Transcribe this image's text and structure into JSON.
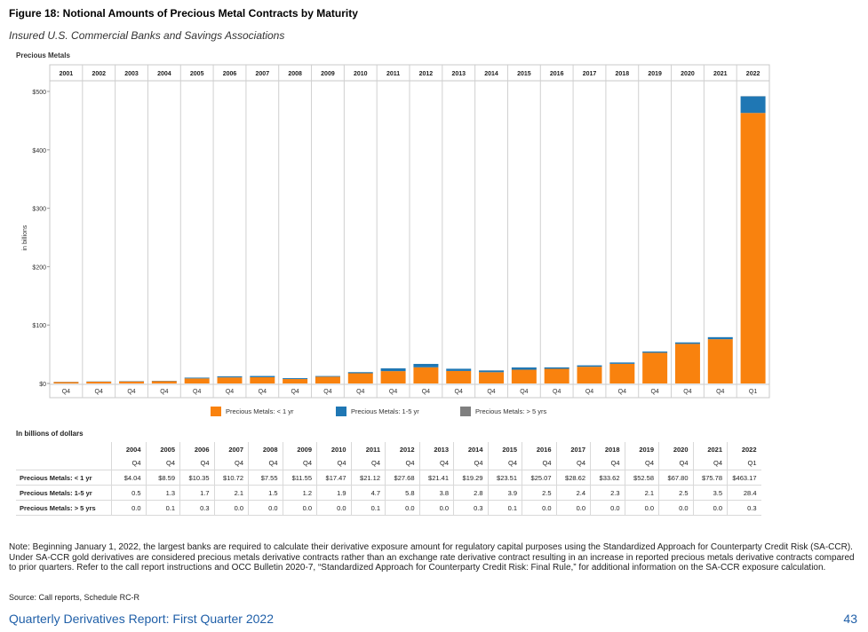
{
  "figure": {
    "title": "Figure 18: Notional Amounts of Precious Metal Contracts by Maturity",
    "subtitle": "Insured U.S. Commercial Banks and Savings Associations",
    "panel_title": "Precious Metals"
  },
  "colors": {
    "lt1": "#f9820e",
    "y1to5": "#1f77b4",
    "gt5": "#7f7f7f"
  },
  "chart_data": {
    "type": "bar",
    "title": "Precious Metals",
    "ylabel": "in billions",
    "xlabel": "",
    "ylim": [
      0,
      500
    ],
    "yticks": [
      "$0",
      "$100",
      "$200",
      "$300",
      "$400",
      "$500"
    ],
    "yticks_values": [
      0,
      100,
      200,
      300,
      400,
      500
    ],
    "categories": [
      "2001",
      "2002",
      "2003",
      "2004",
      "2005",
      "2006",
      "2007",
      "2008",
      "2009",
      "2010",
      "2011",
      "2012",
      "2013",
      "2014",
      "2015",
      "2016",
      "2017",
      "2018",
      "2019",
      "2020",
      "2021",
      "2022"
    ],
    "quarters": [
      "Q4",
      "Q4",
      "Q4",
      "Q4",
      "Q4",
      "Q4",
      "Q4",
      "Q4",
      "Q4",
      "Q4",
      "Q4",
      "Q4",
      "Q4",
      "Q4",
      "Q4",
      "Q4",
      "Q4",
      "Q4",
      "Q4",
      "Q4",
      "Q4",
      "Q1"
    ],
    "stacked": true,
    "series": [
      {
        "name": "Precious Metals: < 1 yr",
        "values": [
          2.5,
          3.0,
          3.5,
          4.04,
          8.59,
          10.35,
          10.72,
          7.55,
          11.55,
          17.47,
          21.12,
          27.68,
          21.41,
          19.29,
          23.51,
          25.07,
          28.62,
          33.62,
          52.58,
          67.8,
          75.78,
          463.17
        ]
      },
      {
        "name": "Precious Metals: 1-5 yr",
        "values": [
          0.3,
          0.4,
          0.5,
          0.5,
          1.3,
          1.7,
          2.1,
          1.5,
          1.2,
          1.9,
          4.7,
          5.8,
          3.8,
          2.8,
          3.9,
          2.5,
          2.4,
          2.3,
          2.1,
          2.5,
          3.5,
          28.4
        ]
      },
      {
        "name": "Precious Metals: > 5 yrs",
        "values": [
          0.0,
          0.0,
          0.0,
          0.0,
          0.1,
          0.3,
          0.0,
          0.0,
          0.0,
          0.0,
          0.1,
          0.0,
          0.0,
          0.3,
          0.1,
          0.0,
          0.0,
          0.0,
          0.0,
          0.0,
          0.0,
          0.3
        ]
      }
    ],
    "legend": [
      "Precious Metals: < 1 yr",
      "Precious Metals: 1-5 yr",
      "Precious Metals: > 5 yrs"
    ],
    "legend_position": "bottom"
  },
  "table": {
    "title": "In billions of dollars",
    "years": [
      "2004",
      "2005",
      "2006",
      "2007",
      "2008",
      "2009",
      "2010",
      "2011",
      "2012",
      "2013",
      "2014",
      "2015",
      "2016",
      "2017",
      "2018",
      "2019",
      "2020",
      "2021",
      "2022"
    ],
    "quarters": [
      "Q4",
      "Q4",
      "Q4",
      "Q4",
      "Q4",
      "Q4",
      "Q4",
      "Q4",
      "Q4",
      "Q4",
      "Q4",
      "Q4",
      "Q4",
      "Q4",
      "Q4",
      "Q4",
      "Q4",
      "Q4",
      "Q1"
    ],
    "rows": [
      {
        "label": "Precious Metals: < 1 yr",
        "values": [
          "$4.04",
          "$8.59",
          "$10.35",
          "$10.72",
          "$7.55",
          "$11.55",
          "$17.47",
          "$21.12",
          "$27.68",
          "$21.41",
          "$19.29",
          "$23.51",
          "$25.07",
          "$28.62",
          "$33.62",
          "$52.58",
          "$67.80",
          "$75.78",
          "$463.17"
        ]
      },
      {
        "label": "Precious Metals: 1-5 yr",
        "values": [
          "0.5",
          "1.3",
          "1.7",
          "2.1",
          "1.5",
          "1.2",
          "1.9",
          "4.7",
          "5.8",
          "3.8",
          "2.8",
          "3.9",
          "2.5",
          "2.4",
          "2.3",
          "2.1",
          "2.5",
          "3.5",
          "28.4"
        ]
      },
      {
        "label": "Precious Metals: > 5 yrs",
        "values": [
          "0.0",
          "0.1",
          "0.3",
          "0.0",
          "0.0",
          "0.0",
          "0.0",
          "0.1",
          "0.0",
          "0.0",
          "0.3",
          "0.1",
          "0.0",
          "0.0",
          "0.0",
          "0.0",
          "0.0",
          "0.0",
          "0.3"
        ]
      }
    ]
  },
  "note": "Note: Beginning January 1, 2022, the largest banks are required to calculate their derivative exposure amount for regulatory capital purposes using the Standardized Approach for Counterparty Credit Risk (SA-CCR). Under SA-CCR gold derivatives are considered precious metals derivative contracts rather than an exchange rate derivative contract resulting in an increase in reported precious metals derivative contracts compared to prior quarters. Refer to the call report instructions and OCC Bulletin 2020-7, “Standardized Approach for Counterparty Credit Risk: Final Rule,” for additional information on the SA-CCR exposure calculation.",
  "source": "Source: Call reports, Schedule RC-R",
  "footer": {
    "report": "Quarterly Derivatives Report: First Quarter 2022",
    "page": "43"
  }
}
